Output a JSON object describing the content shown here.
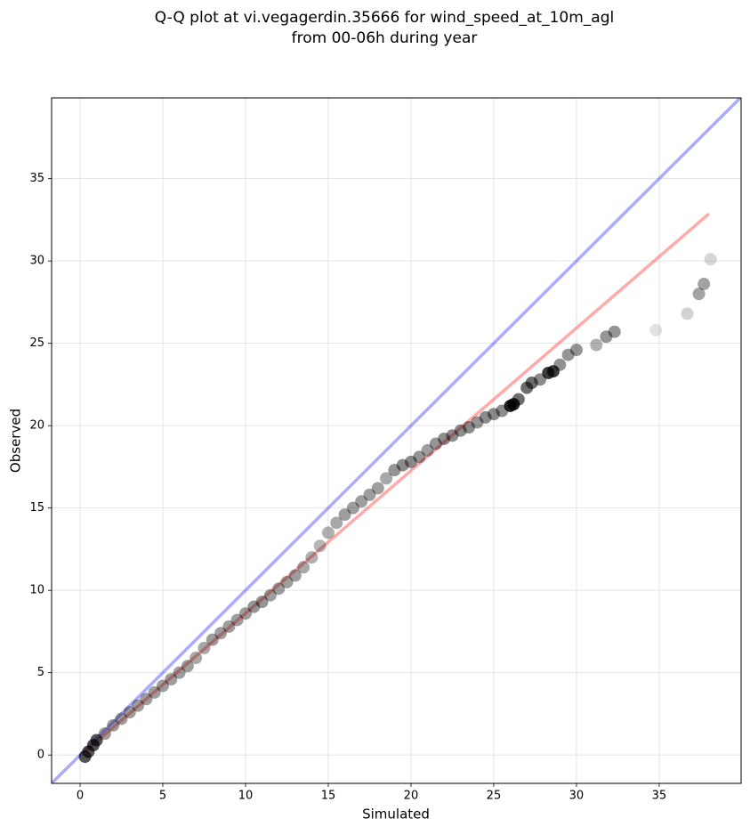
{
  "chart_data": {
    "type": "scatter",
    "title": [
      "Q-Q plot at vi.vegagerdin.35666 for wind_speed_at_10m_agl",
      "from 00-06h during year"
    ],
    "x_label": "Simulated",
    "y_label": "Observed",
    "xlim": [
      -1.72,
      39.95
    ],
    "ylim": [
      -1.72,
      39.9
    ],
    "xticks": [
      0,
      5,
      10,
      15,
      20,
      25,
      30,
      35
    ],
    "yticks": [
      0,
      5,
      10,
      15,
      20,
      25,
      30,
      35
    ],
    "grid": true,
    "series": [
      {
        "color": "#000000",
        "x": [
          0.3,
          0.5,
          0.8,
          1,
          1.5,
          2,
          2.5,
          3,
          3.5,
          4,
          4.5,
          5,
          5.5,
          6,
          6.5,
          7,
          7.5,
          8,
          8.5,
          9,
          9.5,
          10,
          10.5,
          11,
          11.5,
          12,
          12.5,
          13,
          13.5,
          14,
          14.5,
          15,
          15.5,
          16,
          16.5,
          17,
          17.5,
          18,
          18.5,
          19,
          19.5,
          20,
          20.5,
          21,
          21.5,
          22,
          22.5,
          23,
          23.5,
          24,
          24.5,
          25,
          25.5,
          26,
          26.2,
          26.5,
          27,
          27.3,
          27.8,
          28.3,
          28.6,
          29,
          29.5,
          30,
          31.2,
          31.8,
          32.3,
          34.8,
          36.7,
          37.4,
          37.7,
          38.1
        ],
        "values": [
          -0.1,
          0.2,
          0.6,
          0.9,
          1.3,
          1.8,
          2.2,
          2.6,
          3.0,
          3.4,
          3.8,
          4.2,
          4.6,
          5.0,
          5.4,
          5.9,
          6.5,
          7.0,
          7.4,
          7.8,
          8.2,
          8.6,
          9.0,
          9.3,
          9.7,
          10.1,
          10.5,
          10.9,
          11.4,
          12.0,
          12.7,
          13.5,
          14.1,
          14.6,
          15.0,
          15.4,
          15.8,
          16.2,
          16.8,
          17.3,
          17.6,
          17.8,
          18.1,
          18.5,
          18.9,
          19.2,
          19.4,
          19.7,
          19.9,
          20.2,
          20.5,
          20.7,
          20.9,
          21.2,
          21.3,
          21.6,
          22.3,
          22.6,
          22.8,
          23.2,
          23.3,
          23.7,
          24.3,
          24.6,
          24.9,
          25.4,
          25.7,
          25.8,
          26.8,
          28.0,
          28.6,
          30.1
        ]
      }
    ],
    "reference_lines": [
      {
        "color": "#0000ff",
        "x": [
          -1.72,
          39.95
        ],
        "values": [
          -1.72,
          39.95
        ]
      },
      {
        "color": "#ff0000",
        "x": [
          0.3,
          38
        ],
        "values": [
          0.2,
          32.86
        ]
      }
    ]
  }
}
